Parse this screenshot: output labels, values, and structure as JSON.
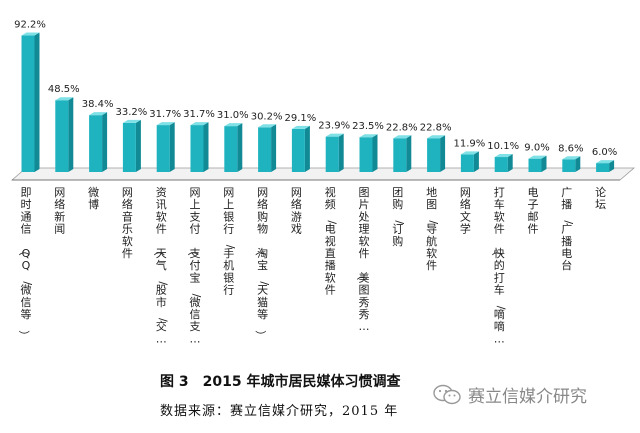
{
  "chart_data": {
    "type": "bar",
    "categories": [
      "即时通信（QQ/微信等）",
      "网络新闻",
      "微博",
      "网络音乐软件",
      "资讯软件（天气/股市/交…",
      "网上支付（支付宝/微信支…",
      "网上银行/手机银行",
      "网络购物（淘宝/天猫等）",
      "网络游戏",
      "视频/电视直播软件",
      "图片处理软件（美图秀秀…",
      "团购/订购",
      "地图/导航软件",
      "网络文学",
      "打车软件（快的打车/嘀嘀…",
      "电子邮件",
      "广播/广播电台",
      "论坛"
    ],
    "values": [
      92.2,
      48.5,
      38.4,
      33.2,
      31.7,
      31.7,
      31.0,
      30.2,
      29.1,
      23.9,
      23.5,
      22.8,
      22.8,
      11.9,
      10.1,
      9.0,
      8.6,
      6.0
    ],
    "value_labels": [
      "92.2%",
      "48.5%",
      "38.4%",
      "33.2%",
      "31.7%",
      "31.7%",
      "31.0%",
      "30.2%",
      "29.1%",
      "23.9%",
      "23.5%",
      "22.8%",
      "22.8%",
      "11.9%",
      "10.1%",
      "9.0%",
      "8.6%",
      "6.0%"
    ],
    "ylim": [
      0,
      100
    ],
    "grid": false,
    "bar_color": "#1fb3c0",
    "bar_top_color": "#7fe0e6",
    "bar_side_color": "#118a96"
  },
  "caption": {
    "title": "图 3　2015 年城市居民媒体习惯调查",
    "source": "数据来源：赛立信媒介研究，2015 年"
  },
  "watermark": {
    "text": "赛立信媒介研究",
    "icon": "wechat-icon"
  }
}
